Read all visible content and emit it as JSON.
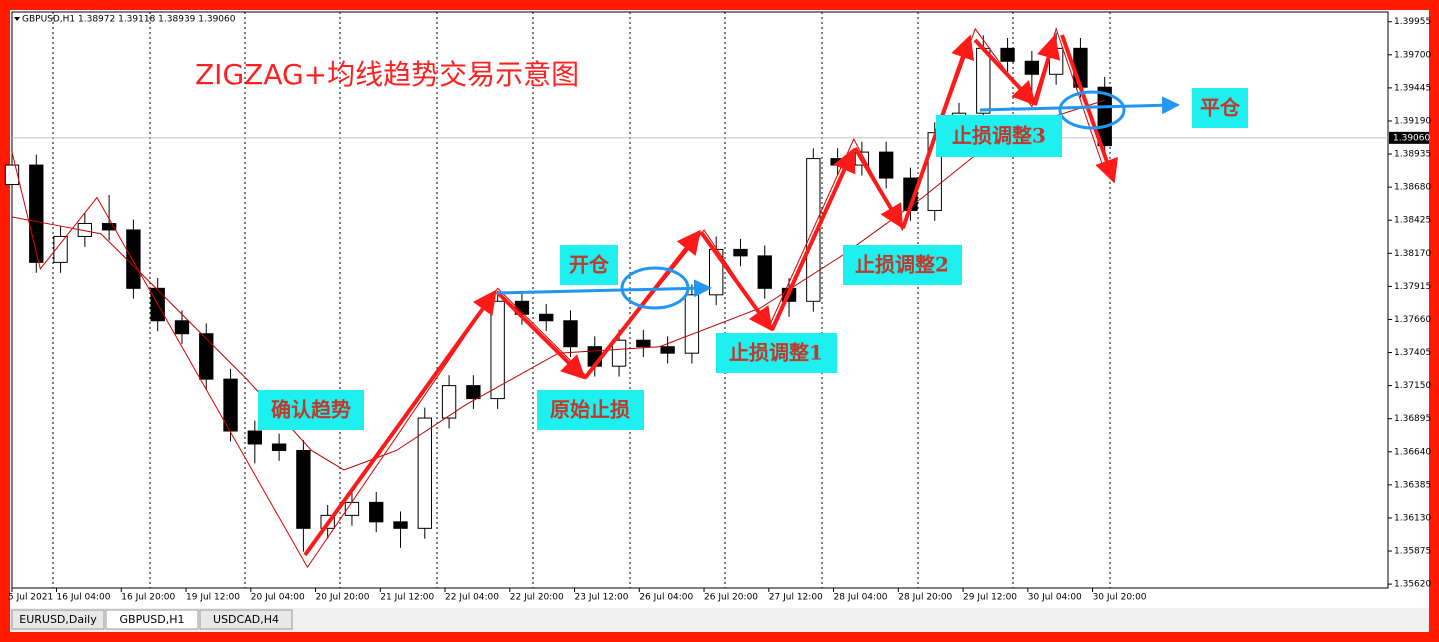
{
  "chart_data": {
    "type": "candlestick",
    "header": "GBPUSD,H1 1.38972 1.39118 1.38939 1.39060",
    "title": "ZIGZAG+均线趋势交易示意图",
    "x": [
      0,
      6,
      12,
      18,
      24,
      30,
      36,
      42,
      48,
      54,
      60,
      66,
      72,
      78,
      84,
      90,
      96,
      102,
      108,
      114,
      120,
      126,
      132,
      138,
      144,
      150,
      156,
      162,
      168,
      174,
      180,
      186,
      192,
      198,
      204,
      210,
      216,
      222,
      228,
      234,
      240,
      246,
      252,
      258,
      264,
      270
    ],
    "open": [
      1.387,
      1.3885,
      1.381,
      1.383,
      1.384,
      1.3835,
      1.379,
      1.3765,
      1.3755,
      1.372,
      1.368,
      1.367,
      1.3665,
      1.3605,
      1.3615,
      1.3625,
      1.361,
      1.3605,
      1.369,
      1.3715,
      1.3705,
      1.378,
      1.377,
      1.3765,
      1.3745,
      1.373,
      1.375,
      1.3745,
      1.374,
      1.3785,
      1.382,
      1.3815,
      1.379,
      1.378,
      1.389,
      1.3885,
      1.3895,
      1.3875,
      1.385,
      1.391,
      1.3925,
      1.3975,
      1.3965,
      1.3955,
      1.3975,
      1.3945
    ],
    "high": [
      1.3893,
      1.3893,
      1.3838,
      1.3848,
      1.3862,
      1.3843,
      1.3798,
      1.3773,
      1.3763,
      1.3728,
      1.3688,
      1.3678,
      1.3673,
      1.3623,
      1.3633,
      1.3633,
      1.3618,
      1.3698,
      1.3723,
      1.3723,
      1.3788,
      1.3788,
      1.3778,
      1.3773,
      1.3753,
      1.3758,
      1.3758,
      1.3753,
      1.3793,
      1.383,
      1.3828,
      1.3823,
      1.3798,
      1.3898,
      1.3898,
      1.3903,
      1.3903,
      1.3883,
      1.3918,
      1.3933,
      1.3985,
      1.3983,
      1.3973,
      1.3987,
      1.3983,
      1.3953
    ],
    "low": [
      1.3862,
      1.3802,
      1.3802,
      1.3822,
      1.3827,
      1.3782,
      1.3757,
      1.3747,
      1.3712,
      1.3672,
      1.3655,
      1.3657,
      1.3587,
      1.3597,
      1.3607,
      1.3602,
      1.359,
      1.3597,
      1.3682,
      1.3697,
      1.3697,
      1.3762,
      1.3757,
      1.3737,
      1.3722,
      1.3722,
      1.3737,
      1.3732,
      1.3732,
      1.3777,
      1.3807,
      1.3782,
      1.3768,
      1.3772,
      1.3877,
      1.3877,
      1.3867,
      1.3842,
      1.3842,
      1.3902,
      1.3917,
      1.3957,
      1.3935,
      1.3947,
      1.3937,
      1.3892
    ],
    "close": [
      1.3885,
      1.381,
      1.383,
      1.384,
      1.3835,
      1.379,
      1.3765,
      1.3755,
      1.372,
      1.368,
      1.367,
      1.3665,
      1.3605,
      1.3615,
      1.3625,
      1.361,
      1.3605,
      1.369,
      1.3715,
      1.3705,
      1.378,
      1.377,
      1.3765,
      1.3745,
      1.373,
      1.375,
      1.3745,
      1.374,
      1.3785,
      1.382,
      1.3815,
      1.379,
      1.378,
      1.389,
      1.3885,
      1.3895,
      1.3875,
      1.385,
      1.391,
      1.3925,
      1.3975,
      1.3965,
      1.3955,
      1.3975,
      1.3945,
      1.39
    ],
    "color": "#000000",
    "series": [
      {
        "color": "#e00000",
        "x": [
          0,
          7,
          21,
          73,
          120,
          142,
          171,
          187,
          208,
          220,
          238,
          252,
          258,
          270
        ],
        "values": [
          1.3895,
          1.3805,
          1.386,
          1.3575,
          1.379,
          1.3722,
          1.3835,
          1.376,
          1.3905,
          1.3835,
          1.399,
          1.393,
          1.399,
          1.388
        ]
      },
      {
        "color": "#c00000",
        "x": [
          0,
          12,
          22,
          34,
          58,
          74,
          82,
          95,
          112,
          135,
          160,
          185,
          205,
          225,
          245,
          270
        ],
        "values": [
          1.3845,
          1.3838,
          1.3832,
          1.3795,
          1.372,
          1.3665,
          1.365,
          1.3665,
          1.37,
          1.374,
          1.3745,
          1.3775,
          1.3815,
          1.386,
          1.391,
          1.3935
        ]
      }
    ],
    "last_price": {
      "value": 1.3906,
      "label": "1.39060"
    },
    "xlim": [
      0,
      340
    ],
    "ylim": [
      1.3559,
      1.4003
    ],
    "yticks": [
      {
        "value": 1.39955,
        "label": "1.39955"
      },
      {
        "value": 1.397,
        "label": "1.39700"
      },
      {
        "value": 1.39445,
        "label": "1.39445"
      },
      {
        "value": 1.3919,
        "label": "1.39190"
      },
      {
        "value": 1.38935,
        "label": "1.38935"
      },
      {
        "value": 1.3868,
        "label": "1.38680"
      },
      {
        "value": 1.38425,
        "label": "1.38425"
      },
      {
        "value": 1.3817,
        "label": "1.38170"
      },
      {
        "value": 1.37915,
        "label": "1.37915"
      },
      {
        "value": 1.3766,
        "label": "1.37660"
      },
      {
        "value": 1.37405,
        "label": "1.37405"
      },
      {
        "value": 1.3715,
        "label": "1.37150"
      },
      {
        "value": 1.36895,
        "label": "1.36895"
      },
      {
        "value": 1.3664,
        "label": "1.36640"
      },
      {
        "value": 1.36385,
        "label": "1.36385"
      },
      {
        "value": 1.3613,
        "label": "1.36130"
      },
      {
        "value": 1.35875,
        "label": "1.35875"
      },
      {
        "value": 1.3562,
        "label": "1.35620"
      }
    ],
    "xticks": [
      {
        "value": -5,
        "label": "5 Jul 2021"
      },
      {
        "value": 11,
        "label": "16 Jul 04:00"
      },
      {
        "value": 27,
        "label": "16 Jul 20:00"
      },
      {
        "value": 43,
        "label": "19 Jul 12:00"
      },
      {
        "value": 59,
        "label": "20 Jul 04:00"
      },
      {
        "value": 75,
        "label": "20 Jul 20:00"
      },
      {
        "value": 91,
        "label": "21 Jul 12:00"
      },
      {
        "value": 107,
        "label": "22 Jul 04:00"
      },
      {
        "value": 123,
        "label": "22 Jul 20:00"
      },
      {
        "value": 139,
        "label": "23 Jul 12:00"
      },
      {
        "value": 155,
        "label": "26 Jul 04:00"
      },
      {
        "value": 171,
        "label": "26 Jul 20:00"
      },
      {
        "value": 187,
        "label": "27 Jul 12:00"
      },
      {
        "value": 203,
        "label": "28 Jul 04:00"
      },
      {
        "value": 219,
        "label": "28 Jul 20:00"
      },
      {
        "value": 235,
        "label": "29 Jul 12:00"
      },
      {
        "value": 251,
        "label": "30 Jul 04:00"
      },
      {
        "value": 267,
        "label": "30 Jul 20:00"
      }
    ],
    "annotations": [
      "确认趋势",
      "原始止损",
      "开仓",
      "止损调整1",
      "止损调整2",
      "止损调整3",
      "平仓"
    ],
    "tabs": [
      "EURUSD,Daily",
      "GBPUSD,H1",
      "USDCAD,H4"
    ]
  }
}
